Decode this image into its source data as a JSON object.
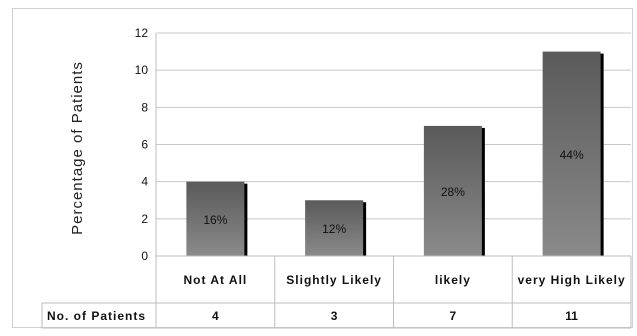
{
  "chart_data": {
    "type": "bar",
    "ylabel": "Percentage of Patients",
    "categories": [
      "Not At All",
      "Slightly Likely",
      "likely",
      "very High Likely"
    ],
    "values": [
      4,
      3,
      7,
      11
    ],
    "data_labels": [
      "16%",
      "12%",
      "28%",
      "44%"
    ],
    "ylim": [
      0,
      12
    ],
    "yticks": [
      0,
      2,
      4,
      6,
      8,
      10,
      12
    ],
    "grid": true,
    "legend": "none",
    "table": {
      "row_header": "No. of Patients",
      "values": [
        "4",
        "3",
        "7",
        "11"
      ]
    },
    "colors": {
      "bar": "#6e6e6e",
      "bar_shadow": "#000000",
      "grid": "#c8c8c8"
    }
  }
}
